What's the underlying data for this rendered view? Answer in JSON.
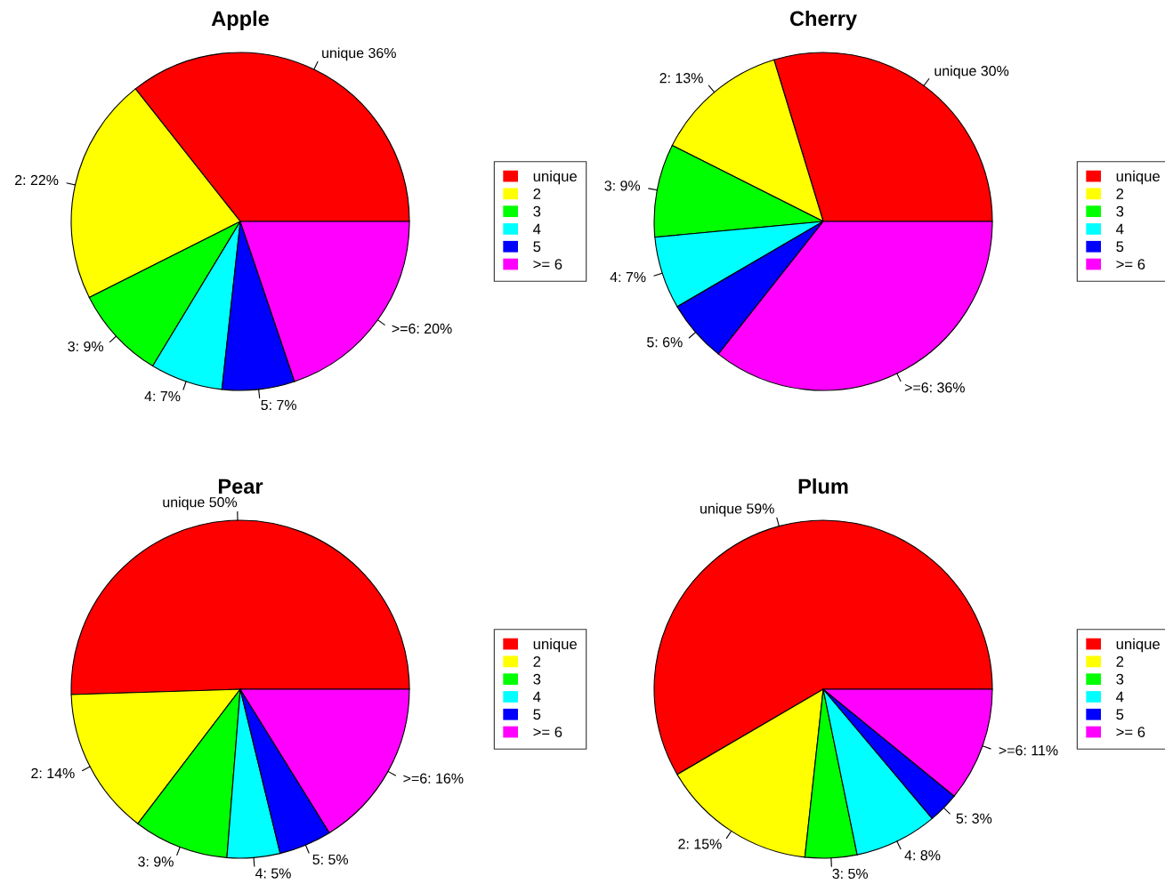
{
  "chart_data": [
    {
      "type": "pie",
      "title": "Apple",
      "categories": [
        "unique",
        "2",
        "3",
        "4",
        "5",
        ">= 6"
      ],
      "values": [
        36,
        22,
        9,
        7,
        7,
        20
      ],
      "colors": [
        "#ff0000",
        "#ffff00",
        "#00ff00",
        "#00ffff",
        "#0000ff",
        "#ff00ff"
      ],
      "value_labels": [
        "unique 36%",
        "2: 22%",
        "3: 9%",
        "4: 7%",
        "5: 7%",
        ">=6: 20%"
      ],
      "legend": "right"
    },
    {
      "type": "pie",
      "title": "Cherry",
      "categories": [
        "unique",
        "2",
        "3",
        "4",
        "5",
        ">= 6"
      ],
      "values": [
        30,
        13,
        9,
        7,
        6,
        36
      ],
      "colors": [
        "#ff0000",
        "#ffff00",
        "#00ff00",
        "#00ffff",
        "#0000ff",
        "#ff00ff"
      ],
      "value_labels": [
        "unique 30%",
        "2: 13%",
        "3: 9%",
        "4: 7%",
        "5: 6%",
        ">=6: 36%"
      ],
      "legend": "right"
    },
    {
      "type": "pie",
      "title": "Pear",
      "categories": [
        "unique",
        "2",
        "3",
        "4",
        "5",
        ">= 6"
      ],
      "values": [
        50,
        14,
        9,
        5,
        5,
        16
      ],
      "colors": [
        "#ff0000",
        "#ffff00",
        "#00ff00",
        "#00ffff",
        "#0000ff",
        "#ff00ff"
      ],
      "value_labels": [
        "unique 50%",
        "2: 14%",
        "3: 9%",
        "4: 5%",
        "5: 5%",
        ">=6: 16%"
      ],
      "legend": "right"
    },
    {
      "type": "pie",
      "title": "Plum",
      "categories": [
        "unique",
        "2",
        "3",
        "4",
        "5",
        ">= 6"
      ],
      "values": [
        59,
        15,
        5,
        8,
        3,
        11
      ],
      "colors": [
        "#ff0000",
        "#ffff00",
        "#00ff00",
        "#00ffff",
        "#0000ff",
        "#ff00ff"
      ],
      "value_labels": [
        "unique 59%",
        "2: 15%",
        "3: 5%",
        "4: 8%",
        "5: 3%",
        ">=6: 11%"
      ],
      "legend": "right"
    }
  ]
}
